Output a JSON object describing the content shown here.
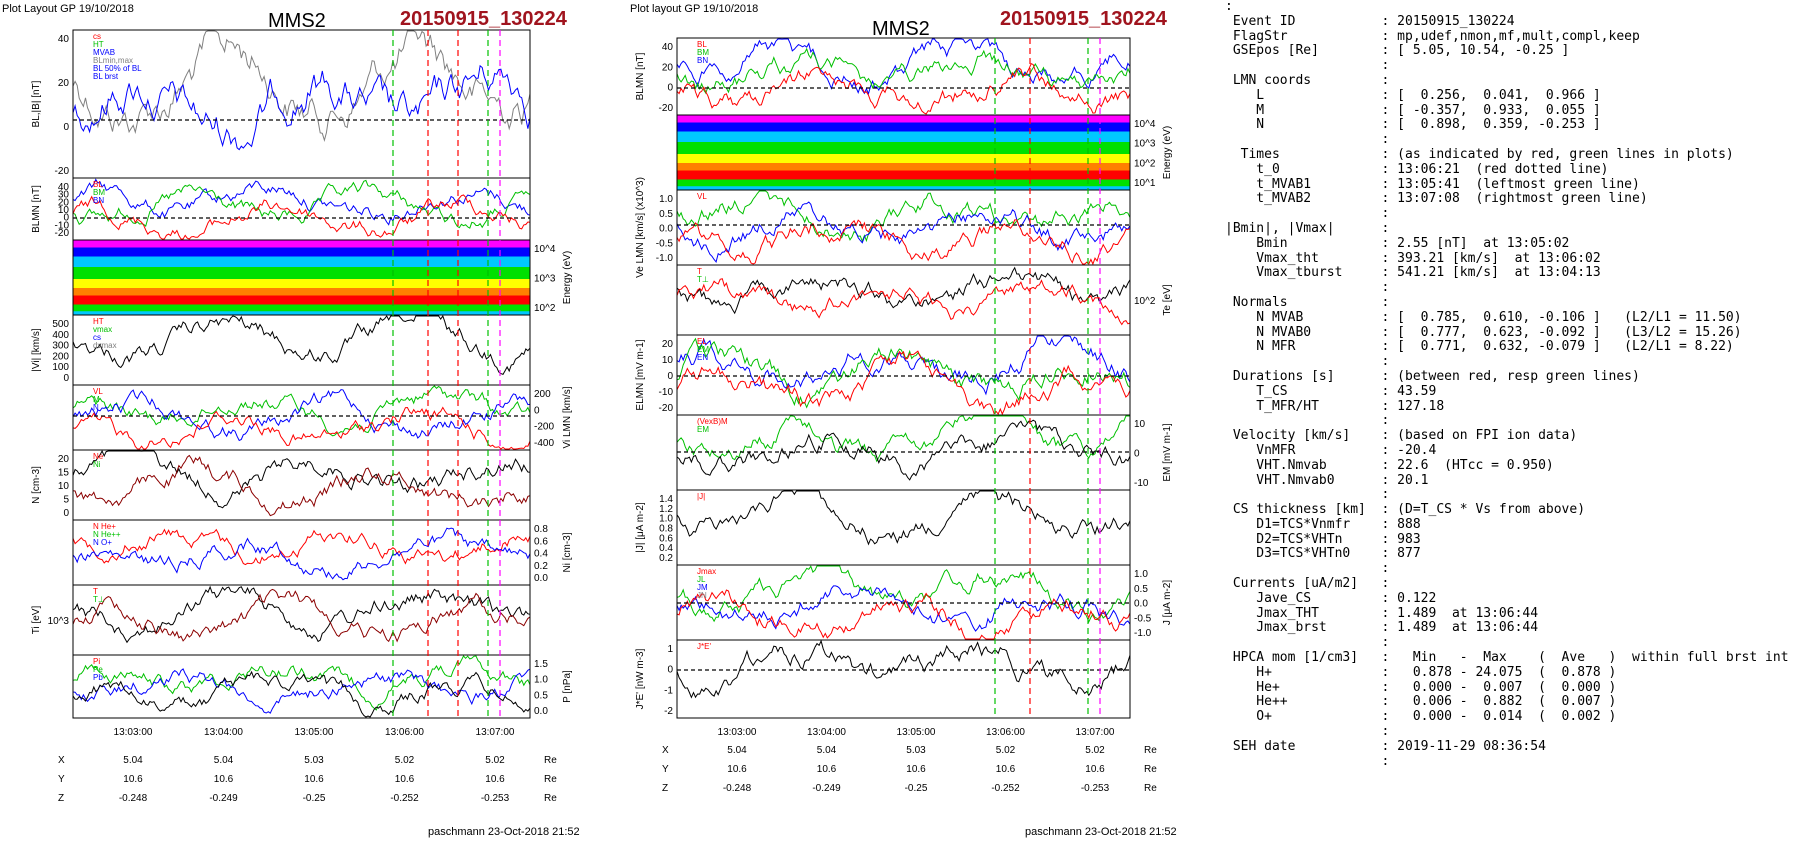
{
  "header": {
    "left_layout": "Plot Layout GP 19/10/2018",
    "mid_layout": "Plot layout GP 19/10/2018",
    "spacecraft": "MMS2",
    "event_id": "20150915_130224",
    "footer_left": "paschmann 23-Oct-2018 21:52",
    "footer_mid": "paschmann 23-Oct-2018 21:52"
  },
  "colors": {
    "event_red": "#a0141e",
    "blue": "#0000ff",
    "green": "#00c000",
    "red": "#ff0000",
    "grey": "#808080",
    "magenta": "#ff00ff"
  },
  "chart_data": [
    {
      "panel": "left-column",
      "type": "line",
      "x_ticks": [
        "13:03:00",
        "13:04:00",
        "13:05:00",
        "13:06:00",
        "13:07:00"
      ],
      "ephemeris": {
        "rows": [
          {
            "label": "X",
            "values": [
              "5.04",
              "5.04",
              "5.03",
              "5.02",
              "5.02"
            ],
            "unit": "Re"
          },
          {
            "label": "Y",
            "values": [
              "10.6",
              "10.6",
              "10.6",
              "10.6",
              "10.6"
            ],
            "unit": "Re"
          },
          {
            "label": "Z",
            "values": [
              "-0.248",
              "-0.249",
              "-0.25",
              "-0.252",
              "-0.253"
            ],
            "unit": "Re"
          }
        ]
      },
      "panels": [
        {
          "ylabel": "BL,|B| [nT]",
          "yticks": [
            "40",
            "20",
            "0",
            "-20"
          ],
          "legend": [
            "cs",
            "HT",
            "MVAB",
            "BLmin,max",
            "BL 50% of BL",
            "BL brst"
          ]
        },
        {
          "ylabel": "BLMN [nT]",
          "yticks": [
            "40",
            "30",
            "20",
            "10",
            "0",
            "-10",
            "-20"
          ],
          "legend": [
            "BL",
            "BM",
            "BN"
          ]
        },
        {
          "ylabel_right": "Energy (eV)",
          "yticks_right": [
            "10^4",
            "10^3",
            "10^2"
          ]
        },
        {
          "ylabel": "|Vi| [km/s]",
          "yticks": [
            "500",
            "400",
            "300",
            "200",
            "100",
            "0"
          ],
          "legend": [
            "HT",
            "vmax",
            "cs",
            "dvmax"
          ]
        },
        {
          "ylabel_right": "Vi LMN [km/s]",
          "yticks_right": [
            "200",
            "0",
            "-200",
            "-400"
          ],
          "legend": [
            "VL",
            "M",
            "N"
          ]
        },
        {
          "ylabel": "N [cm-3]",
          "yticks": [
            "20",
            "15",
            "10",
            "5",
            "0"
          ],
          "legend": [
            "Ne",
            "Ni"
          ]
        },
        {
          "ylabel_right": "Ni [cm-3]",
          "yticks_right": [
            "0.8",
            "0.6",
            "0.4",
            "0.2",
            "0.0"
          ],
          "legend": [
            "N He+",
            "N He++",
            "N O+"
          ]
        },
        {
          "ylabel": "Ti [eV]",
          "yticks": [
            "10^3"
          ],
          "legend": [
            "T",
            "T⊥"
          ]
        },
        {
          "ylabel_right": "P [nPa]",
          "yticks_right": [
            "1.5",
            "1.0",
            "0.5",
            "0.0"
          ],
          "legend": [
            "Pi",
            "Pe",
            "Pb"
          ]
        }
      ]
    },
    {
      "panel": "middle-column",
      "type": "line",
      "x_ticks": [
        "13:03:00",
        "13:04:00",
        "13:05:00",
        "13:06:00",
        "13:07:00"
      ],
      "ephemeris": {
        "rows": [
          {
            "label": "X",
            "values": [
              "5.04",
              "5.04",
              "5.03",
              "5.02",
              "5.02"
            ],
            "unit": "Re"
          },
          {
            "label": "Y",
            "values": [
              "10.6",
              "10.6",
              "10.6",
              "10.6",
              "10.6"
            ],
            "unit": "Re"
          },
          {
            "label": "Z",
            "values": [
              "-0.248",
              "-0.249",
              "-0.25",
              "-0.252",
              "-0.253"
            ],
            "unit": "Re"
          }
        ]
      },
      "panels": [
        {
          "ylabel": "BLMN [nT]",
          "yticks": [
            "40",
            "20",
            "0",
            "-20"
          ],
          "legend": [
            "BL",
            "BM",
            "BN"
          ]
        },
        {
          "ylabel_right": "Energy (eV)",
          "yticks_right": [
            "10^4",
            "10^3",
            "10^2",
            "10^1"
          ]
        },
        {
          "ylabel": "Ve LMN [km/s] (x10^3)",
          "yticks": [
            "1.0",
            "0.5",
            "0.0",
            "-0.5",
            "-1.0"
          ],
          "legend": [
            "VL"
          ]
        },
        {
          "ylabel_right": "Te [eV]",
          "yticks_right": [
            "10^2"
          ],
          "legend": [
            "T",
            "T⊥"
          ]
        },
        {
          "ylabel": "ELMN [mV m-1]",
          "yticks": [
            "20",
            "10",
            "0",
            "-10",
            "-20"
          ],
          "legend": [
            "EL",
            "EM",
            "EN"
          ]
        },
        {
          "ylabel_right": "EM [mV m-1]",
          "yticks_right": [
            "10",
            "0",
            "-10"
          ],
          "legend": [
            "(VexB)M",
            "EM"
          ]
        },
        {
          "ylabel": "|J| [μA m-2]",
          "yticks": [
            "1.4",
            "1.2",
            "1.0",
            "0.8",
            "0.6",
            "0.4",
            "0.2"
          ],
          "legend": [
            "|J|"
          ]
        },
        {
          "ylabel_right": "J [μA m-2]",
          "yticks_right": [
            "1.0",
            "0.5",
            "0.0",
            "-0.5",
            "-1.0"
          ],
          "legend": [
            "Jmax",
            "JL",
            "JM",
            "JN"
          ]
        },
        {
          "ylabel": "J*E' [nW m-3]",
          "yticks": [
            "1",
            "0",
            "-1",
            "-2"
          ],
          "legend": [
            "J*E'"
          ]
        }
      ]
    }
  ],
  "right_panel": {
    "lines": [
      ":",
      " Event ID           : 20150915_130224",
      " FlagStr            : mp,udef,nmon,mf,mult,compl,keep",
      " GSEpos [Re]        : [ 5.05, 10.54, -0.25 ]",
      "                    :",
      " LMN coords         :",
      "    L               : [  0.256,  0.041,  0.966 ]",
      "    M               : [ -0.357,  0.933,  0.055 ]",
      "    N               : [  0.898,  0.359, -0.253 ]",
      "                    :",
      "  Times             : (as indicated by red, green lines in plots)",
      "    t_0             : 13:06:21  (red dotted line)",
      "    t_MVAB1         : 13:05:41  (leftmost green line)",
      "    t_MVAB2         : 13:07:08  (rightmost green line)",
      "                    :",
      "|Bmin|, |Vmax|      :",
      "    Bmin            : 2.55 [nT]  at 13:05:02",
      "    Vmax_tht        : 393.21 [km/s]  at 13:06:02",
      "    Vmax_tburst     : 541.21 [km/s]  at 13:04:13",
      "                    :",
      " Normals            :",
      "    N MVAB          : [  0.785,  0.610, -0.106 ]   (L2/L1 = 11.50)",
      "    N MVAB0         : [  0.777,  0.623, -0.092 ]   (L3/L2 = 15.26)",
      "    N MFR           : [  0.771,  0.632, -0.079 ]   (L2/L1 = 8.22)",
      "                    :",
      " Durations [s]      : (between red, resp green lines)",
      "    T_CS            : 43.59",
      "    T_MFR/HT        : 127.18",
      "                    :",
      " Velocity [km/s]    : (based on FPI ion data)",
      "    VnMFR           : -20.4",
      "    VHT.Nmvab       : 22.6  (HTcc = 0.950)",
      "    VHT.Nmvab0      : 20.1",
      "                    :",
      " CS thickness [km]  : (D=T_CS * Vs from above)",
      "    D1=TCS*Vnmfr    : 888",
      "    D2=TCS*VHTn     : 983",
      "    D3=TCS*VHTn0    : 877",
      "                    :",
      " Currents [uA/m2]   :",
      "    Jave_CS         : 0.122",
      "    Jmax_THT        : 1.489  at 13:06:44",
      "    Jmax_brst       : 1.489  at 13:06:44",
      "                    :",
      " HPCA mom [1/cm3]   :   Min   -  Max    (  Ave   )  within full brst int",
      "    H+              :   0.878 - 24.075  (  0.878 )",
      "    He+             :   0.000 -  0.007  (  0.000 )",
      "    He++            :   0.006 -  0.882  (  0.007 )",
      "    O+              :   0.000 -  0.014  (  0.002 )",
      "                    :",
      " SEH date           : 2019-11-29 08:36:54",
      "                    :"
    ]
  }
}
